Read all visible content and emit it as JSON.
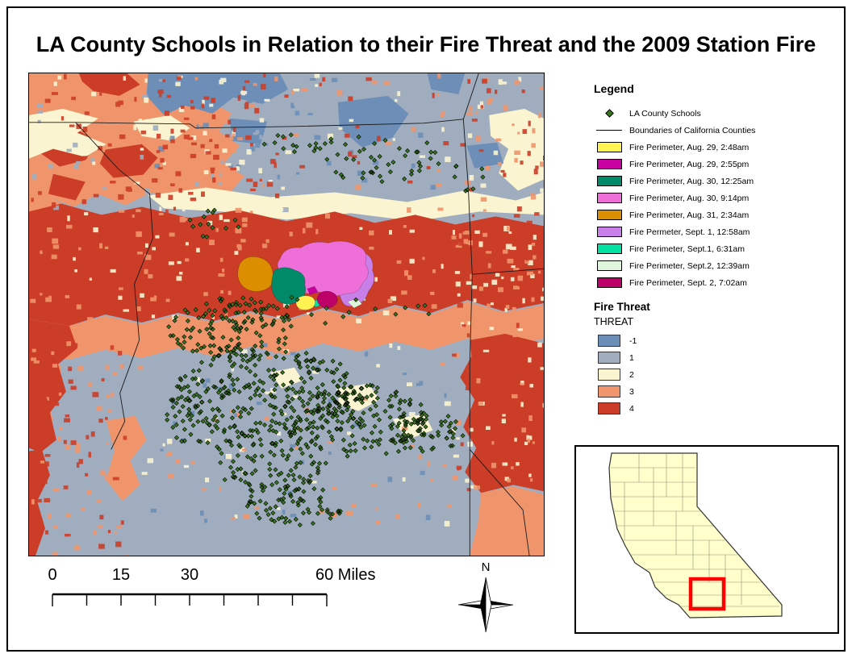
{
  "title": "LA County Schools in Relation to their Fire Threat and the 2009 Station Fire",
  "legend": {
    "heading": "Legend",
    "schools": {
      "label": "LA County Schools",
      "marker": "green-diamond",
      "marker_color": "#38761D"
    },
    "boundaries": {
      "label": "Boundaries of California Counties",
      "symbol": "black-line"
    },
    "fire_perimeters": [
      {
        "label": "Fire Perimeter, Aug. 29, 2:48am",
        "color": "#FFF352"
      },
      {
        "label": "Fire Perimeter, Aug. 29, 2:55pm",
        "color": "#C800A1"
      },
      {
        "label": "Fire Perimeter, Aug. 30, 12:25am",
        "color": "#008A68"
      },
      {
        "label": "Fire Perimeter, Aug. 30, 9:14pm",
        "color": "#EF6FD9"
      },
      {
        "label": "Fire Perimeter, Aug. 31, 2:34am",
        "color": "#DB8E00"
      },
      {
        "label": "Fire Permeter, Sept. 1, 12:58am",
        "color": "#C880E8"
      },
      {
        "label": "Fire Perimeter, Sept.1, 6:31am",
        "color": "#00E0A0"
      },
      {
        "label": "Fire Perimeter, Sept.2, 12:39am",
        "color": "#DFF5DC"
      },
      {
        "label": "Fire Perimeter, Sept. 2, 7:02am",
        "color": "#BE0069"
      }
    ],
    "fire_threat_heading": "Fire Threat",
    "threat_heading": "THREAT",
    "threat_classes": [
      {
        "label": "-1",
        "color": "#6D8EB6"
      },
      {
        "label": "1",
        "color": "#9FADBF"
      },
      {
        "label": "2",
        "color": "#FAF4D1"
      },
      {
        "label": "3",
        "color": "#F0956B"
      },
      {
        "label": "4",
        "color": "#CB3D27"
      }
    ]
  },
  "scale_bar": {
    "labels": [
      "0",
      "15",
      "30",
      "60 Miles"
    ]
  },
  "north_arrow": {
    "label": "N"
  },
  "overview_inset": {
    "state_fill": "#FFFFCC",
    "highlight_color": "#FF0000",
    "boundary_color": "#333333"
  }
}
